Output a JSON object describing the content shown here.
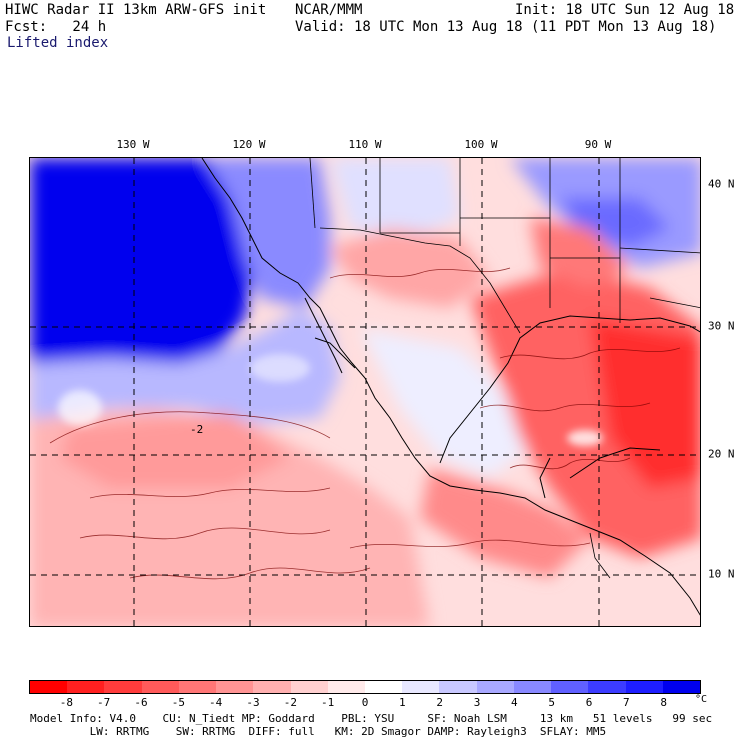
{
  "header": {
    "title": "HIWC Radar II 13km ARW-GFS init",
    "org": "NCAR/MMM",
    "init": "Init: 18 UTC Sun 12 Aug 18",
    "fcst": "Fcst:   24 h",
    "valid": "Valid: 18 UTC Mon 13 Aug 18 (11 PDT Mon 13 Aug 18)",
    "field": "Lifted index"
  },
  "map": {
    "lon_labels": [
      "130 W",
      "120 W",
      "110 W",
      "100 W",
      "90 W"
    ],
    "lat_labels": [
      "40 N",
      "30 N",
      "20 N",
      "10 N"
    ],
    "contour_label": "-2"
  },
  "colorbar": {
    "colors": [
      "#ff0000",
      "#ff2020",
      "#ff3c3c",
      "#ff5a5a",
      "#ff7676",
      "#ff9494",
      "#ffb0b0",
      "#ffd0d0",
      "#ffeaea",
      "#ffffff",
      "#e8e8ff",
      "#c8c8ff",
      "#a8a8ff",
      "#8888ff",
      "#6060ff",
      "#3c3cff",
      "#1e1eff",
      "#0000ee"
    ],
    "ticks": [
      "-8",
      "-7",
      "-6",
      "-5",
      "-4",
      "-3",
      "-2",
      "-1",
      "0",
      "1",
      "2",
      "3",
      "4",
      "5",
      "6",
      "7",
      "8"
    ],
    "unit": "°C"
  },
  "footer": {
    "line1": "Model Info: V4.0    CU: N_Tiedt MP: Goddard    PBL: YSU     SF: Noah LSM     13 km   51 levels   99 sec",
    "line2": "         LW: RRTMG    SW: RRTMG  DIFF: full   KM: 2D Smagor DAMP: Rayleigh3  SFLAY: MM5"
  }
}
